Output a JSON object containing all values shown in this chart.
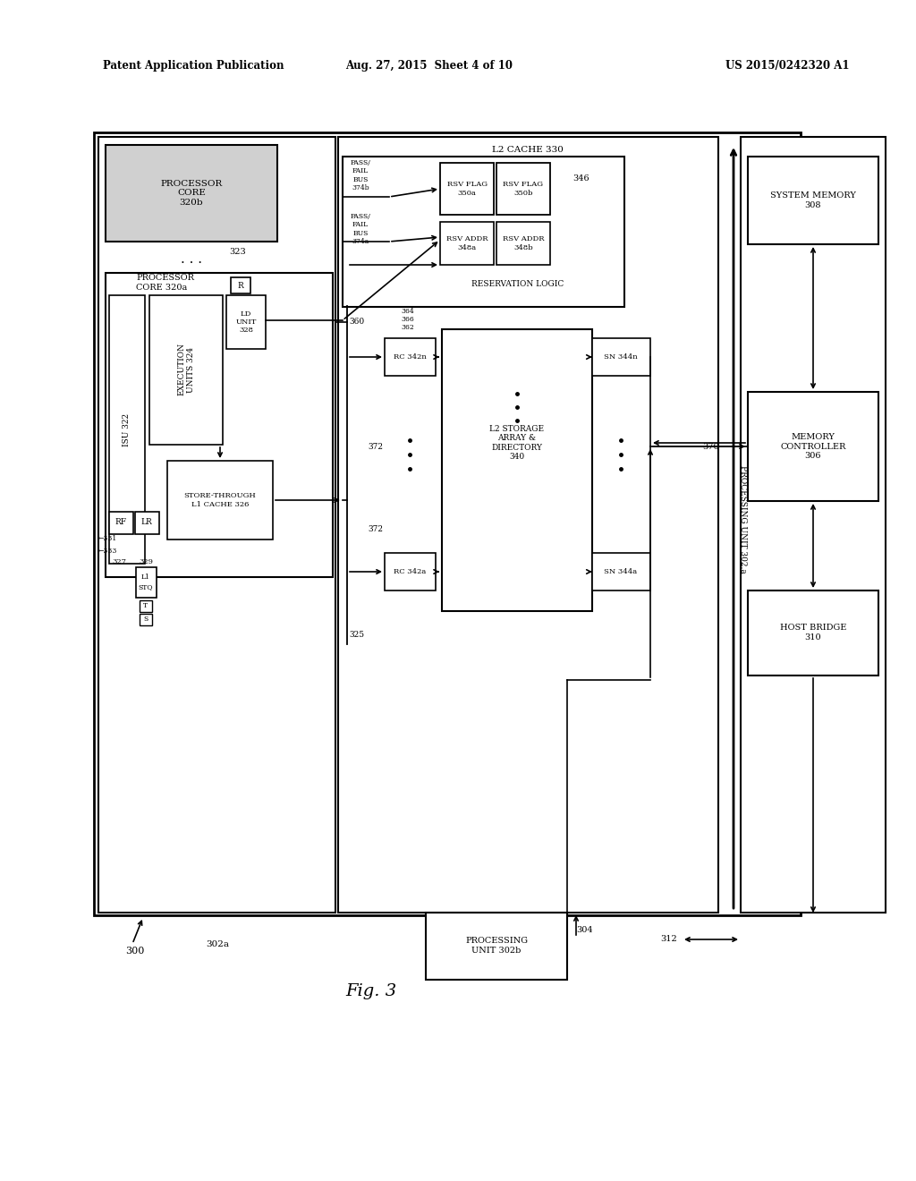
{
  "bg_color": "#ffffff",
  "header_left": "Patent Application Publication",
  "header_mid": "Aug. 27, 2015  Sheet 4 of 10",
  "header_right": "US 2015/0242320 A1"
}
